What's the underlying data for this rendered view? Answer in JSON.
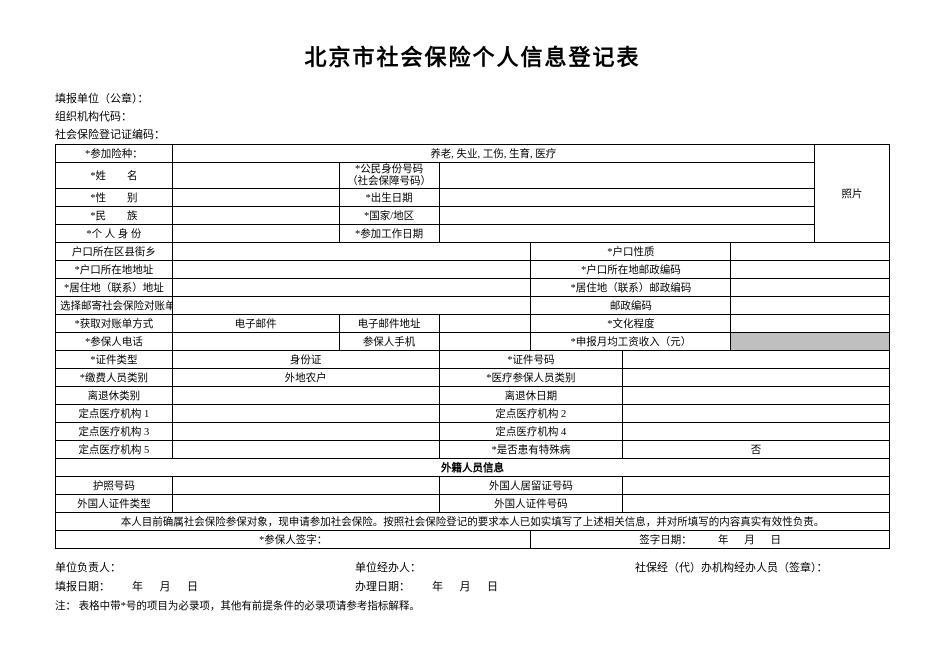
{
  "title": "北京市社会保险个人信息登记表",
  "header": {
    "reporting_unit_label": "填报单位（公章）：",
    "org_code_label": "组织机构代码：",
    "ssn_reg_label": "社会保险登记证编码："
  },
  "table": {
    "insurance_types_label": "*参加险种：",
    "insurance_types_value": "养老, 失业, 工伤, 生育, 医疗",
    "name_label": "*姓　　名",
    "citizen_id_label": "*公民身份号码\n（社会保障号码）",
    "photo_label": "照片",
    "gender_label": "*性　　别",
    "birth_label": "*出生日期",
    "ethnicity_label": "*民　　族",
    "nation_label": "*国家/地区",
    "identity_label": "*个 人 身 份",
    "work_date_label": "*参加工作日期",
    "hukou_district_label": "户口所在区县街乡",
    "hukou_nature_label": "*户口性质",
    "hukou_address_label": "*户口所在地地址",
    "hukou_postcode_label": "*户口所在地邮政编码",
    "residence_address_label": "*居住地（联系）地址",
    "residence_postcode_label": "*居住地（联系）邮政编码",
    "mail_bill_address_label": "选择邮寄社会保险对账单地址",
    "mail_postcode_label": "邮政编码",
    "bill_method_label": "*获取对账单方式",
    "bill_method_value": "电子邮件",
    "email_address_label": "电子邮件地址",
    "education_label": "*文化程度",
    "insured_phone_label": "*参保人电话",
    "insured_mobile_label": "参保人手机",
    "avg_salary_label": "*申报月均工资收入（元）",
    "cert_type_label": "*证件类型",
    "cert_type_value": "身份证",
    "cert_no_label": "*证件号码",
    "payer_type_label": "*缴费人员类别",
    "payer_type_value": "外地农户",
    "medical_insured_type_label": "*医疗参保人员类别",
    "retire_type_label": "离退休类别",
    "retire_date_label": "离退休日期",
    "hosp1": "定点医疗机构 1",
    "hosp2": "定点医疗机构 2",
    "hosp3": "定点医疗机构 3",
    "hosp4": "定点医疗机构 4",
    "hosp5": "定点医疗机构 5",
    "special_disease_label": "*是否患有特殊病",
    "special_disease_value": "否",
    "foreign_section": "外籍人员信息",
    "passport_label": "护照号码",
    "residence_permit_label": "外国人居留证号码",
    "foreign_cert_type_label": "外国人证件类型",
    "foreign_cert_no_label": "外国人证件号码",
    "statement": "本人目前确属社会保险参保对象，现申请参加社会保险。按照社会保险登记的要求本人已如实填写了上述相关信息，并对所填写的内容真实有效性负责。",
    "sign_label": "*参保人签字：",
    "sign_date_label": "签字日期：",
    "year": "年",
    "month": "月",
    "day": "日"
  },
  "footer": {
    "unit_head": "单位负责人：",
    "unit_handler": "单位经办人：",
    "agency_handler": "社保经（代）办机构经办人员（签章）：",
    "fill_date_label": "填报日期：",
    "handle_date_label": "办理日期：",
    "year": "年",
    "month": "月",
    "day": "日",
    "note_prefix": "注：",
    "note_text": "表格中带*号的项目为必录项，其他有前提条件的必录项请参考指标解释。"
  }
}
